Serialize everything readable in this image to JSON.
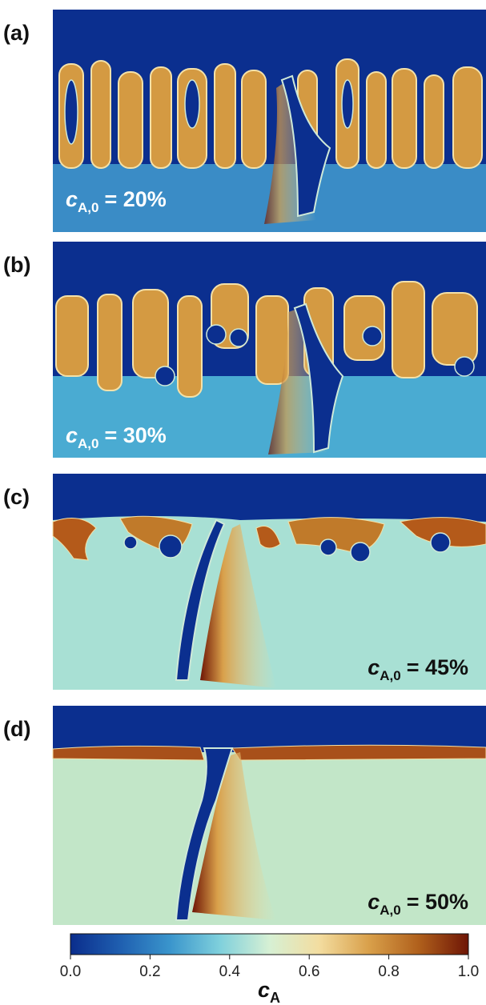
{
  "panels": [
    {
      "label": "(a)",
      "annotation": {
        "symbol": "c",
        "subscript": "A,0",
        "text": "= 20%"
      }
    },
    {
      "label": "(b)",
      "annotation": {
        "symbol": "c",
        "subscript": "A,0",
        "text": "= 30%"
      }
    },
    {
      "label": "(c)",
      "annotation": {
        "symbol": "c",
        "subscript": "A,0",
        "text": "= 45%"
      }
    },
    {
      "label": "(d)",
      "annotation": {
        "symbol": "c",
        "subscript": "A,0",
        "text": "= 50%"
      }
    }
  ],
  "colorbar": {
    "label": {
      "symbol": "c",
      "subscript": "A"
    },
    "colormap": [
      "#0a2d8c",
      "#1f5fb0",
      "#3a95cc",
      "#7fd0dc",
      "#d6f0d4",
      "#f3dda0",
      "#d9a04a",
      "#b0601c",
      "#6e1505"
    ],
    "lim": [
      0,
      1
    ],
    "ticks": [
      {
        "value": 0,
        "label": "0.0"
      },
      {
        "value": 0.2,
        "label": "0.2"
      },
      {
        "value": 0.4,
        "label": "0.4"
      },
      {
        "value": 0.6,
        "label": "0.6"
      },
      {
        "value": 0.8,
        "label": "0.8"
      },
      {
        "value": 1,
        "label": "1.0"
      }
    ]
  }
}
